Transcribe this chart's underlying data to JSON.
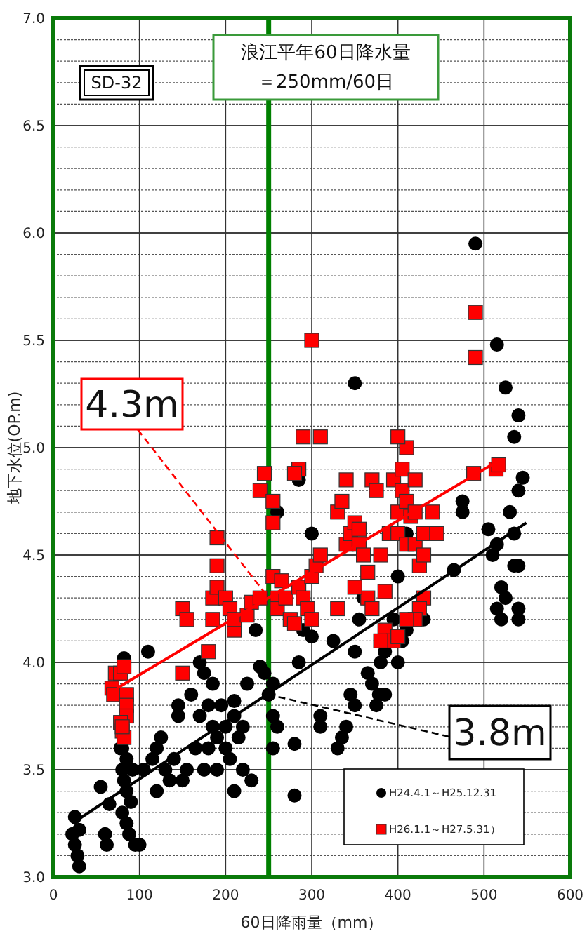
{
  "chart_data": {
    "type": "scatter",
    "xlabel": "60日降雨量（mm）",
    "ylabel": "地下水位(OP.m)",
    "xlim": [
      0,
      600
    ],
    "ylim": [
      3.0,
      7.0
    ],
    "xticks": [
      0,
      100,
      200,
      300,
      400,
      500,
      600
    ],
    "yticks": [
      {
        "value": 3.0,
        "label": "3.0"
      },
      {
        "value": 3.1,
        "label": null
      },
      {
        "value": 3.2,
        "label": null
      },
      {
        "value": 3.3,
        "label": null
      },
      {
        "value": 3.4,
        "label": null
      },
      {
        "value": 3.5,
        "label": "3.5"
      },
      {
        "value": 3.6,
        "label": null
      },
      {
        "value": 3.7,
        "label": null
      },
      {
        "value": 3.8,
        "label": null
      },
      {
        "value": 3.9,
        "label": null
      },
      {
        "value": 4.0,
        "label": "4.0"
      },
      {
        "value": 4.1,
        "label": null
      },
      {
        "value": 4.2,
        "label": null
      },
      {
        "value": 4.3,
        "label": null
      },
      {
        "value": 4.4,
        "label": null
      },
      {
        "value": 4.5,
        "label": "4.5"
      },
      {
        "value": 4.6,
        "label": null
      },
      {
        "value": 4.7,
        "label": null
      },
      {
        "value": 4.8,
        "label": null
      },
      {
        "value": 4.9,
        "label": null
      },
      {
        "value": 5.0,
        "label": "5.0"
      },
      {
        "value": 5.1,
        "label": null
      },
      {
        "value": 5.2,
        "label": null
      },
      {
        "value": 5.3,
        "label": null
      },
      {
        "value": 5.4,
        "label": null
      },
      {
        "value": 5.5,
        "label": "5.5"
      },
      {
        "value": 5.6,
        "label": null
      },
      {
        "value": 5.7,
        "label": null
      },
      {
        "value": 5.8,
        "label": null
      },
      {
        "value": 5.9,
        "label": null
      },
      {
        "value": 6.0,
        "label": "6.0"
      },
      {
        "value": 6.1,
        "label": null
      },
      {
        "value": 6.2,
        "label": null
      },
      {
        "value": 6.3,
        "label": null
      },
      {
        "value": 6.4,
        "label": null
      },
      {
        "value": 6.5,
        "label": "6.5"
      },
      {
        "value": 6.6,
        "label": null
      },
      {
        "value": 6.7,
        "label": null
      },
      {
        "value": 6.8,
        "label": null
      },
      {
        "value": 6.9,
        "label": null
      },
      {
        "value": 7.0,
        "label": "7.0"
      }
    ],
    "grid": true,
    "legend": "bottom right",
    "ref_lines": [
      {
        "axis": "x",
        "value": 250,
        "color": "#008000"
      }
    ],
    "annotations": [
      "SD-32",
      "浪江平年60日降水量",
      "＝250mm/60日",
      {
        "text": "4.3m",
        "x": 250,
        "y": 4.3
      },
      {
        "text": "3.8m",
        "x": 250,
        "y": 3.85
      }
    ],
    "series": [
      {
        "name": "H24.4.1～H25.12.31",
        "marker": "circle",
        "color": "#000000",
        "x": [
          22,
          25,
          28,
          30,
          30,
          25,
          55,
          60,
          62,
          65,
          78,
          80,
          82,
          85,
          80,
          85,
          88,
          90,
          92,
          95,
          85,
          82,
          80,
          100,
          105,
          110,
          115,
          120,
          120,
          125,
          130,
          135,
          140,
          145,
          145,
          150,
          155,
          160,
          165,
          170,
          170,
          175,
          175,
          180,
          180,
          185,
          185,
          190,
          190,
          195,
          200,
          200,
          205,
          210,
          210,
          210,
          215,
          220,
          220,
          225,
          230,
          235,
          240,
          245,
          250,
          255,
          255,
          255,
          260,
          280,
          280,
          285,
          290,
          300,
          310,
          310,
          325,
          330,
          335,
          340,
          345,
          350,
          350,
          355,
          365,
          370,
          375,
          378,
          380,
          385,
          385,
          395,
          400,
          405,
          410,
          430,
          285,
          350,
          260,
          300,
          360,
          400,
          410,
          490,
          475,
          475,
          465,
          515,
          525,
          540,
          535,
          540,
          545,
          530,
          535,
          510,
          515,
          520,
          525,
          515,
          540,
          535,
          540,
          520,
          540,
          505
        ],
        "values": [
          3.2,
          3.15,
          3.1,
          3.22,
          3.05,
          3.28,
          3.42,
          3.2,
          3.15,
          3.34,
          3.6,
          3.5,
          3.45,
          3.4,
          3.3,
          3.25,
          3.2,
          3.35,
          3.5,
          3.15,
          3.55,
          4.02,
          3.6,
          3.15,
          3.5,
          4.05,
          3.55,
          3.6,
          3.4,
          3.65,
          3.5,
          3.45,
          3.55,
          3.75,
          3.8,
          3.45,
          3.5,
          3.85,
          3.6,
          3.75,
          4.0,
          3.95,
          3.5,
          3.8,
          3.6,
          3.7,
          3.9,
          3.65,
          3.5,
          3.8,
          3.7,
          3.6,
          3.55,
          3.75,
          3.4,
          3.82,
          3.65,
          3.7,
          3.5,
          3.9,
          3.45,
          4.15,
          3.98,
          3.95,
          3.85,
          3.9,
          3.75,
          3.6,
          3.7,
          3.62,
          3.38,
          4.0,
          4.15,
          4.12,
          3.75,
          3.7,
          4.1,
          3.6,
          3.65,
          3.7,
          3.85,
          3.8,
          4.05,
          4.2,
          3.95,
          3.9,
          3.8,
          3.85,
          4.0,
          4.05,
          3.85,
          4.2,
          4.0,
          4.1,
          4.15,
          4.2,
          4.85,
          5.3,
          4.7,
          4.6,
          4.3,
          4.4,
          4.6,
          5.95,
          4.7,
          4.75,
          4.43,
          5.48,
          5.28,
          5.15,
          5.05,
          4.8,
          4.86,
          4.7,
          4.6,
          4.5,
          4.55,
          4.35,
          4.3,
          4.25,
          4.25,
          4.45,
          4.45,
          4.2,
          4.2,
          4.62
        ]
      },
      {
        "name": "H26.1.1～H27.5.31）",
        "marker": "square",
        "color": "#ff0000",
        "x": [
          68,
          70,
          72,
          78,
          82,
          85,
          85,
          85,
          78,
          80,
          82,
          80,
          150,
          150,
          155,
          180,
          185,
          185,
          190,
          190,
          190,
          200,
          205,
          210,
          210,
          225,
          230,
          240,
          245,
          255,
          255,
          255,
          260,
          260,
          265,
          270,
          275,
          280,
          285,
          290,
          295,
          300,
          305,
          310,
          300,
          310,
          330,
          335,
          340,
          345,
          350,
          355,
          355,
          360,
          365,
          365,
          370,
          375,
          380,
          385,
          390,
          395,
          400,
          400,
          405,
          410,
          410,
          415,
          420,
          425,
          430,
          430,
          440,
          430,
          425,
          420,
          330,
          300,
          350,
          240,
          290,
          340,
          410,
          400,
          420,
          285,
          280,
          370,
          385,
          395,
          400,
          410,
          405,
          420,
          445,
          380,
          490,
          490,
          488,
          514,
          517
        ],
        "values": [
          3.88,
          3.85,
          3.95,
          3.95,
          3.98,
          3.85,
          3.8,
          3.75,
          3.72,
          3.68,
          3.65,
          3.7,
          3.95,
          4.25,
          4.2,
          4.05,
          4.2,
          4.3,
          4.35,
          4.45,
          4.58,
          4.3,
          4.25,
          4.15,
          4.2,
          4.22,
          4.28,
          4.8,
          4.88,
          4.65,
          4.75,
          4.4,
          4.3,
          4.25,
          4.38,
          4.3,
          4.2,
          4.18,
          4.35,
          4.3,
          4.25,
          4.4,
          4.45,
          4.5,
          5.5,
          5.05,
          4.7,
          4.75,
          4.55,
          4.6,
          4.65,
          4.62,
          4.55,
          4.5,
          4.3,
          4.42,
          4.85,
          4.8,
          4.5,
          4.33,
          4.6,
          4.85,
          4.7,
          4.6,
          4.8,
          4.75,
          4.55,
          4.68,
          4.55,
          4.45,
          4.5,
          4.6,
          4.7,
          4.3,
          4.25,
          4.2,
          4.25,
          4.2,
          4.35,
          4.3,
          5.05,
          4.85,
          5.0,
          5.05,
          4.7,
          4.9,
          4.88,
          4.25,
          4.15,
          4.1,
          4.12,
          4.2,
          4.9,
          4.85,
          4.6,
          4.1,
          5.42,
          5.63,
          4.88,
          4.9,
          4.92
        ]
      },
      {
        "type": "line",
        "color": "#000000",
        "x": [
          22,
          549
        ],
        "values": [
          3.25,
          4.65
        ]
      },
      {
        "type": "line",
        "color": "#ff0000",
        "x": [
          74,
          517
        ],
        "values": [
          3.88,
          4.94
        ]
      }
    ]
  }
}
